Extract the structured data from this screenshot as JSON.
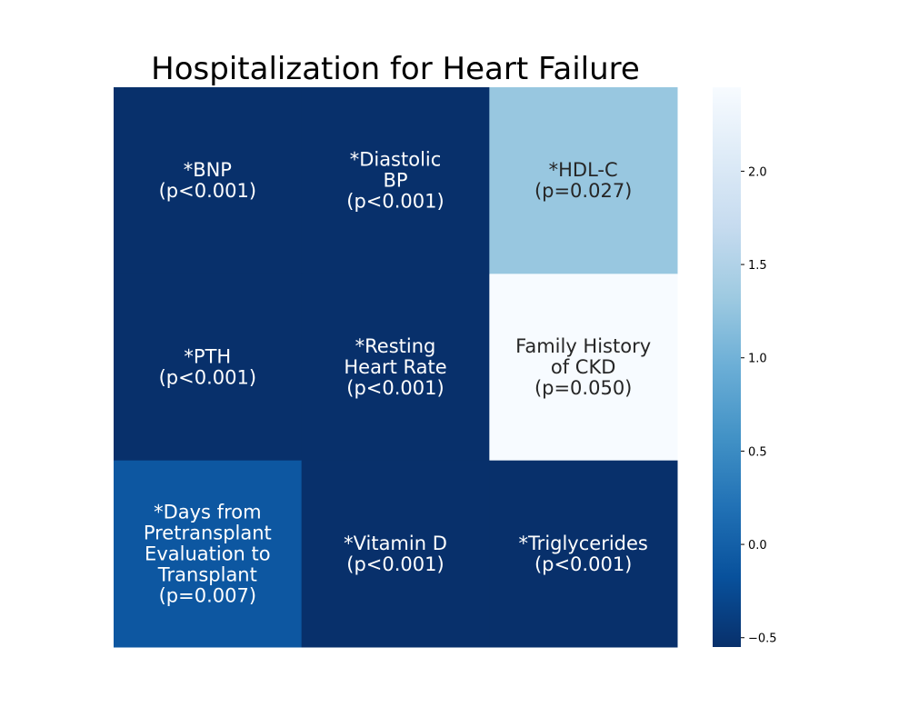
{
  "chart_data": {
    "type": "heatmap",
    "title": "Hospitalization for Heart Failure",
    "rows": 3,
    "cols": 3,
    "cells": [
      {
        "row": 0,
        "col": 0,
        "lines": [
          "*BNP",
          "(p<0.001)"
        ],
        "value": -0.55
      },
      {
        "row": 0,
        "col": 1,
        "lines": [
          "*Diastolic",
          "BP",
          "(p<0.001)"
        ],
        "value": -0.55
      },
      {
        "row": 0,
        "col": 2,
        "lines": [
          "*HDL-C",
          "(p=0.027)"
        ],
        "value": 1.28
      },
      {
        "row": 1,
        "col": 0,
        "lines": [
          "*PTH",
          "(p<0.001)"
        ],
        "value": -0.55
      },
      {
        "row": 1,
        "col": 1,
        "lines": [
          "*Resting",
          "Heart Rate",
          "(p<0.001)"
        ],
        "value": -0.55
      },
      {
        "row": 1,
        "col": 2,
        "lines": [
          "Family History",
          "of CKD",
          "(p=0.050)"
        ],
        "value": 2.45
      },
      {
        "row": 2,
        "col": 0,
        "lines": [
          "*Days from",
          "Pretransplant",
          "Evaluation to",
          "Transplant",
          "(p=0.007)"
        ],
        "value": -0.1
      },
      {
        "row": 2,
        "col": 1,
        "lines": [
          "*Vitamin D",
          "(p<0.001)"
        ],
        "value": -0.55
      },
      {
        "row": 2,
        "col": 2,
        "lines": [
          "*Triglycerides",
          "(p<0.001)"
        ],
        "value": -0.55
      }
    ],
    "colorbar": {
      "colormap": "Blues_r",
      "range": [
        -0.55,
        2.45
      ],
      "ticks": [
        -0.5,
        0.0,
        0.5,
        1.0,
        1.5,
        2.0
      ],
      "tick_labels": [
        "−0.5",
        "0.0",
        "0.5",
        "1.0",
        "1.5",
        "2.0"
      ]
    }
  }
}
